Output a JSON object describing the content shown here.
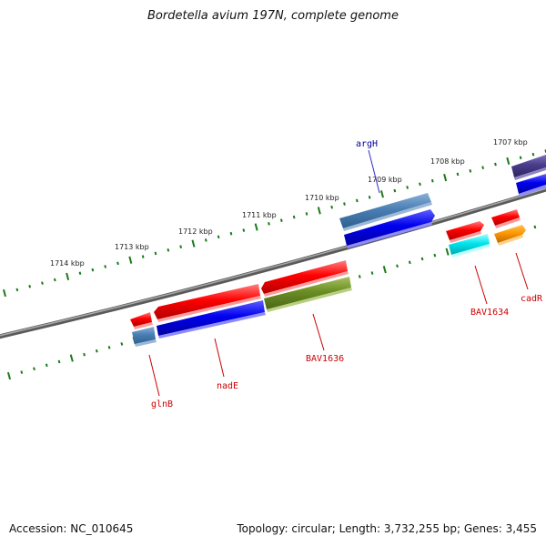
{
  "title": "Bordetella avium 197N, complete genome",
  "footer": {
    "accession": "Accession: NC_010645",
    "summary": "Topology: circular; Length: 3,732,255 bp; Genes: 3,455"
  },
  "colors": {
    "backbone": "#808080",
    "tick": "#1a7a1a",
    "label_red": "#cc0000",
    "label_blue": "#000099"
  },
  "kbp_ticks": [
    {
      "label": "1714 kbp",
      "pos": 1714
    },
    {
      "label": "1713 kbp",
      "pos": 1713
    },
    {
      "label": "1712 kbp",
      "pos": 1712
    },
    {
      "label": "1711 kbp",
      "pos": 1711
    },
    {
      "label": "1710 kbp",
      "pos": 1710
    },
    {
      "label": "1709 kbp",
      "pos": 1709
    },
    {
      "label": "1708 kbp",
      "pos": 1708
    },
    {
      "label": "1707 kbp",
      "pos": 1707
    }
  ],
  "labels": {
    "argH": "argH",
    "glnB": "glnB",
    "nadE": "nadE",
    "BAV1636": "BAV1636",
    "BAV1634": "BAV1634",
    "cadR": "cadR"
  }
}
